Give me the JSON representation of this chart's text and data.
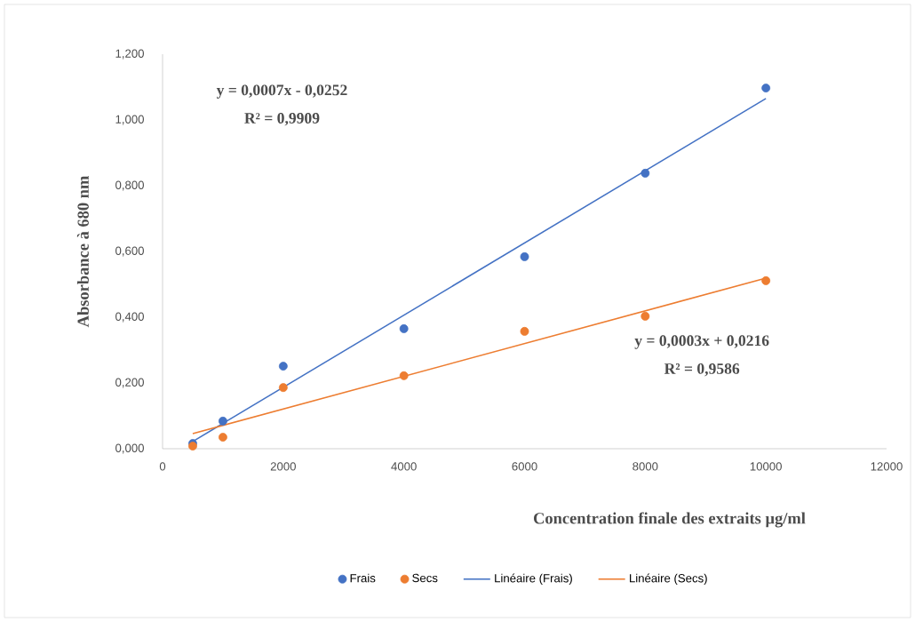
{
  "chart_data": {
    "type": "scatter",
    "xlabel": "Concentration finale des extraits µg/ml",
    "ylabel": "Absorbance à 680 nm",
    "xlim": [
      0,
      12000
    ],
    "xticks": [
      0,
      2000,
      4000,
      6000,
      8000,
      10000,
      12000
    ],
    "ylim": [
      0,
      1.2
    ],
    "yticks": [
      {
        "value": 0,
        "label": "0,000"
      },
      {
        "value": 0.2,
        "label": "0,200"
      },
      {
        "value": 0.4,
        "label": "0,400"
      },
      {
        "value": 0.6,
        "label": "0,600"
      },
      {
        "value": 0.8,
        "label": "0,800"
      },
      {
        "value": 1.0,
        "label": "1,000"
      },
      {
        "value": 1.2,
        "label": "1,200"
      }
    ],
    "grid": false,
    "legend": "bottom",
    "marker": "circle",
    "series": [
      {
        "name": "Frais",
        "color": "#4472c4",
        "x": [
          500,
          1000,
          2000,
          4000,
          6000,
          8000,
          10000
        ],
        "values": [
          0.016,
          0.084,
          0.251,
          0.365,
          0.584,
          0.838,
          1.097
        ]
      },
      {
        "name": "Secs",
        "color": "#ed7d31",
        "x": [
          500,
          1000,
          2000,
          4000,
          6000,
          8000,
          10000
        ],
        "values": [
          0.008,
          0.035,
          0.186,
          0.222,
          0.357,
          0.403,
          0.511
        ]
      },
      {
        "name": "Linéaire (Frais)",
        "type": "line",
        "marker": "none",
        "color": "#4472c4",
        "x": [
          500,
          10000
        ],
        "values": [
          0.022,
          1.065
        ]
      },
      {
        "name": "Linéaire (Secs)",
        "type": "line",
        "marker": "none",
        "color": "#ed7d31",
        "x": [
          500,
          10000
        ],
        "values": [
          0.046,
          0.519
        ]
      }
    ],
    "annotations": [
      "y = 0,0007x - 0,0252",
      "R² = 0,9909",
      "y = 0,0003x + 0,0216",
      "R² = 0,9586"
    ]
  }
}
